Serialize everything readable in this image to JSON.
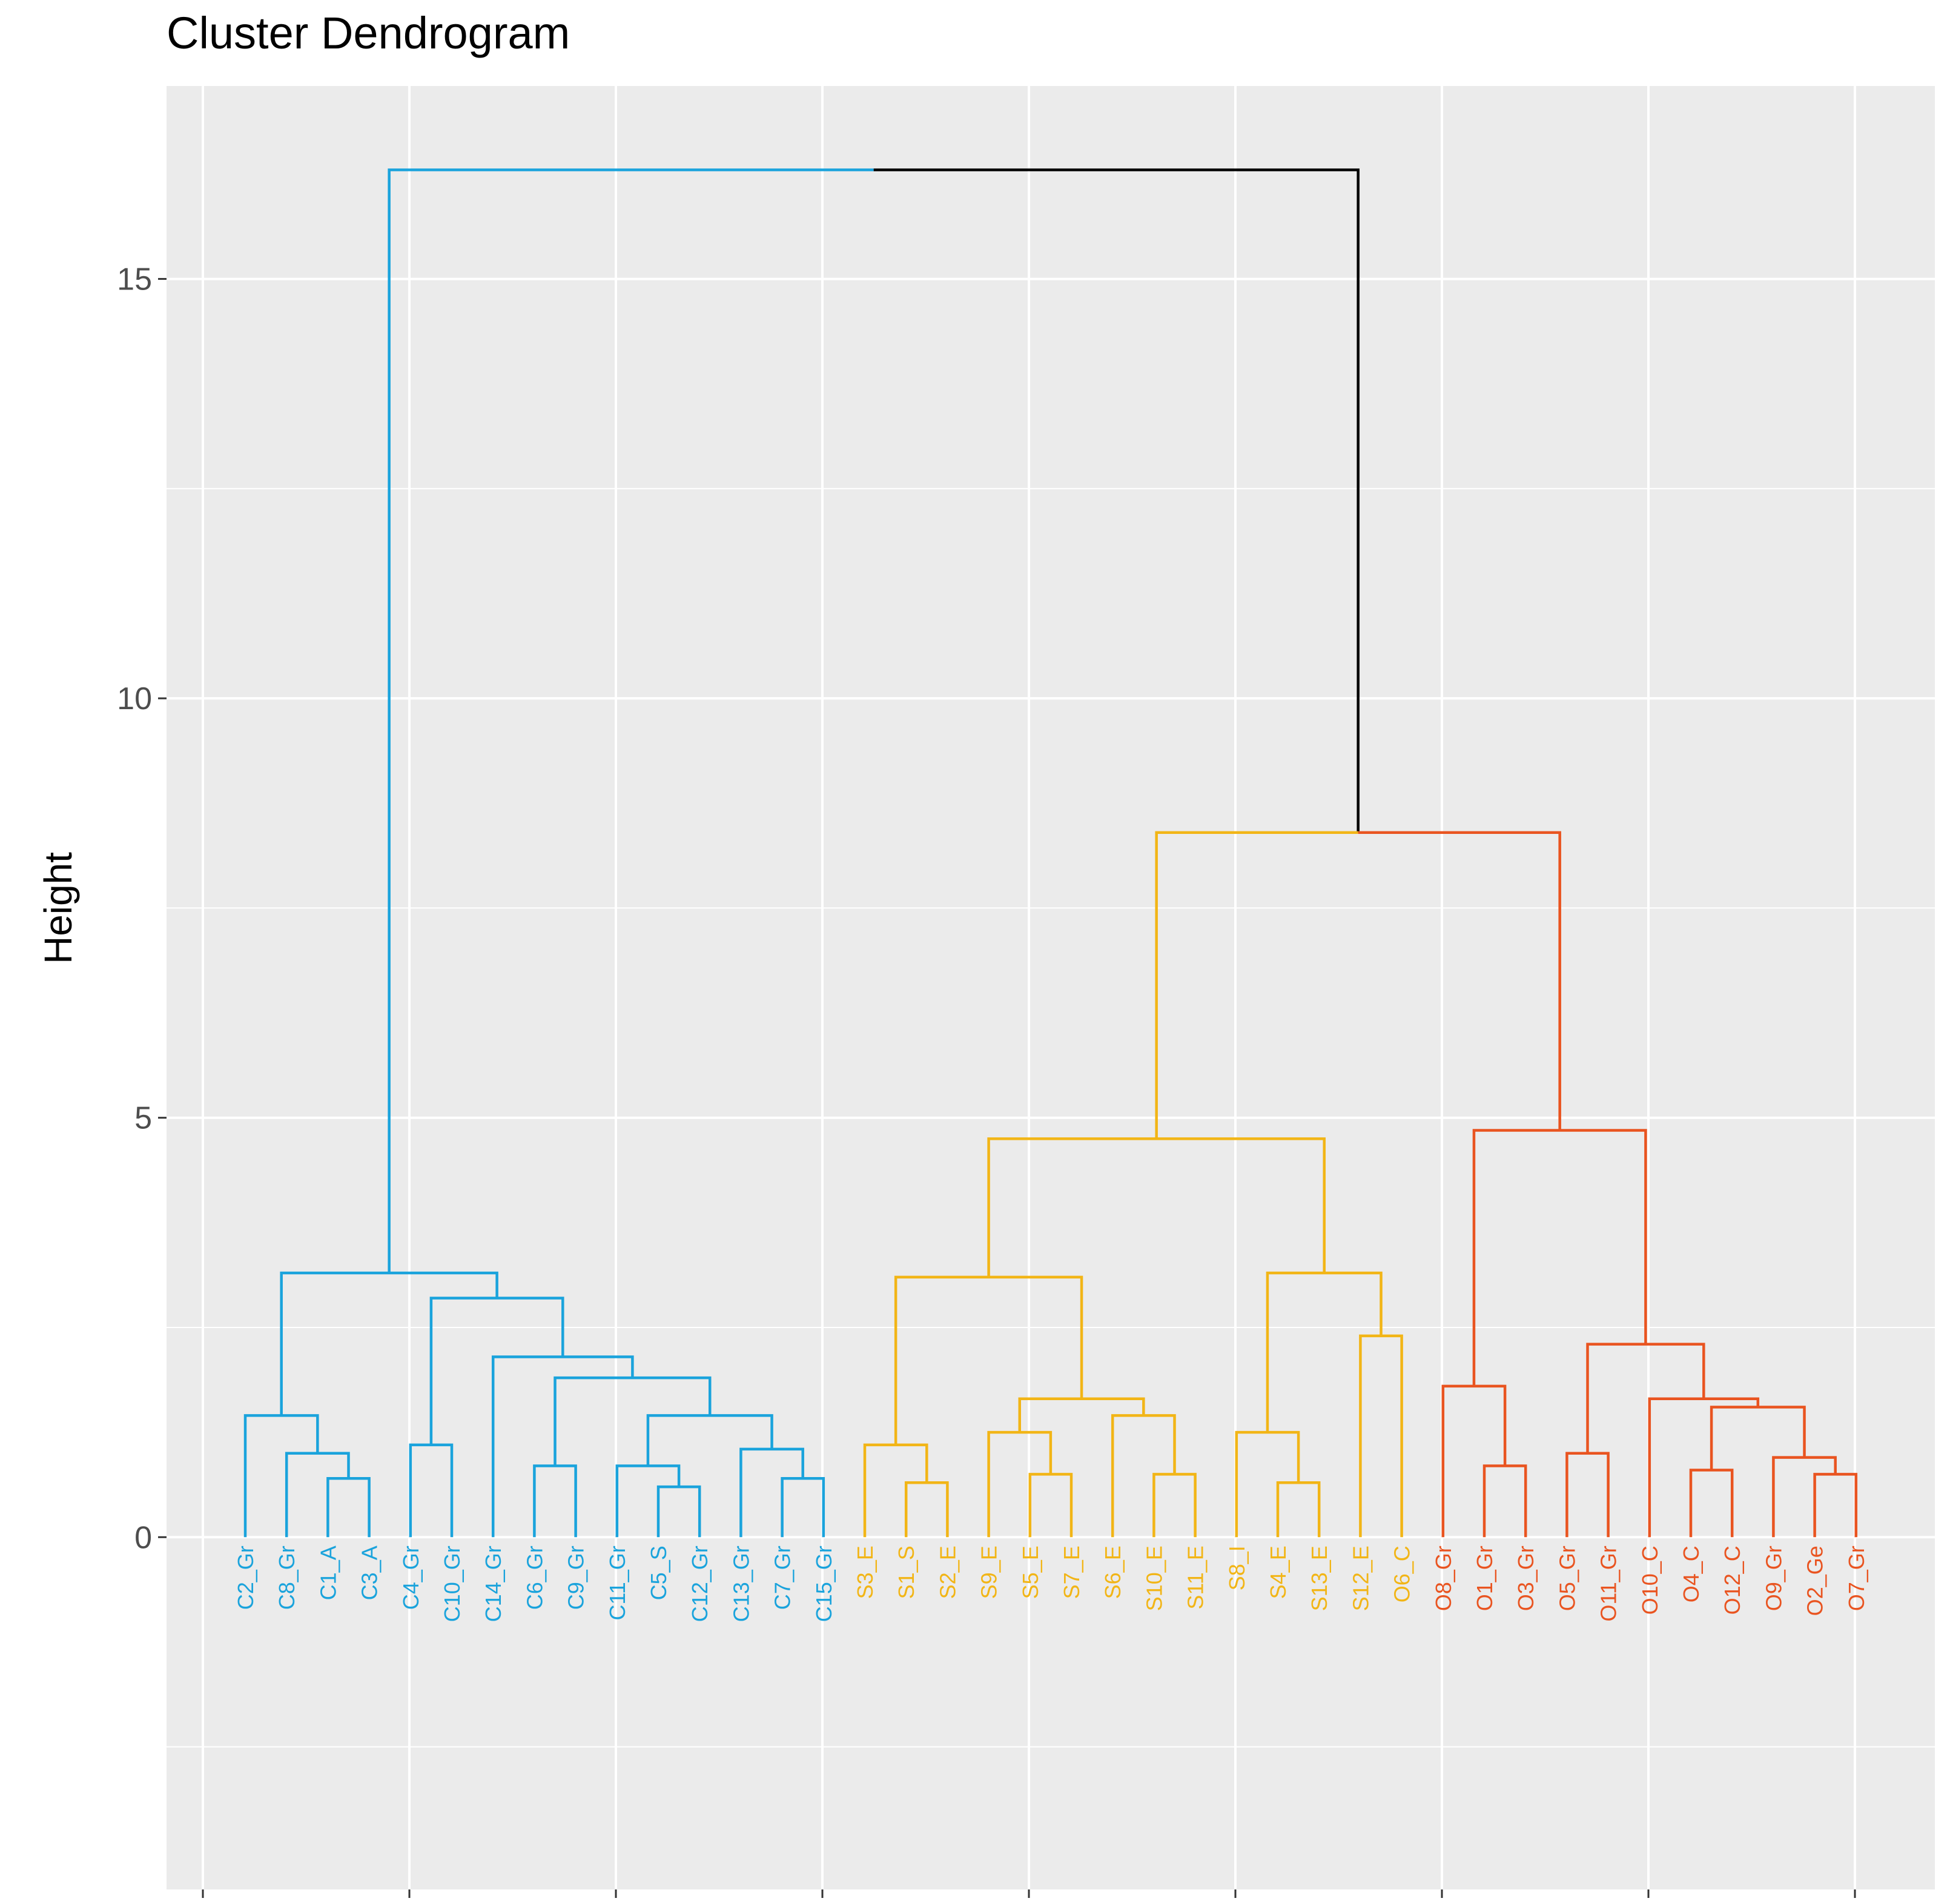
{
  "chart_data": {
    "type": "dendrogram",
    "title": "Cluster Dendrogram",
    "xlabel": "",
    "ylabel": "Height",
    "ylim": [
      -4.2,
      17.3
    ],
    "yticks": [
      0,
      5,
      10,
      15
    ],
    "grid": true,
    "leaves": [
      {
        "label": "C2_Gr",
        "cluster": "C"
      },
      {
        "label": "C8_Gr",
        "cluster": "C"
      },
      {
        "label": "C1_A",
        "cluster": "C"
      },
      {
        "label": "C3_A",
        "cluster": "C"
      },
      {
        "label": "C4_Gr",
        "cluster": "C"
      },
      {
        "label": "C10_Gr",
        "cluster": "C"
      },
      {
        "label": "C14_Gr",
        "cluster": "C"
      },
      {
        "label": "C6_Gr",
        "cluster": "C"
      },
      {
        "label": "C9_Gr",
        "cluster": "C"
      },
      {
        "label": "C11_Gr",
        "cluster": "C"
      },
      {
        "label": "C5_S",
        "cluster": "C"
      },
      {
        "label": "C12_Gr",
        "cluster": "C"
      },
      {
        "label": "C13_Gr",
        "cluster": "C"
      },
      {
        "label": "C7_Gr",
        "cluster": "C"
      },
      {
        "label": "C15_Gr",
        "cluster": "C"
      },
      {
        "label": "S3_E",
        "cluster": "S"
      },
      {
        "label": "S1_S",
        "cluster": "S"
      },
      {
        "label": "S2_E",
        "cluster": "S"
      },
      {
        "label": "S9_E",
        "cluster": "S"
      },
      {
        "label": "S5_E",
        "cluster": "S"
      },
      {
        "label": "S7_E",
        "cluster": "S"
      },
      {
        "label": "S6_E",
        "cluster": "S"
      },
      {
        "label": "S10_E",
        "cluster": "S"
      },
      {
        "label": "S11_E",
        "cluster": "S"
      },
      {
        "label": "S8_I",
        "cluster": "S"
      },
      {
        "label": "S4_E",
        "cluster": "S"
      },
      {
        "label": "S13_E",
        "cluster": "S"
      },
      {
        "label": "S12_E",
        "cluster": "S"
      },
      {
        "label": "O6_C",
        "cluster": "S"
      },
      {
        "label": "O8_Gr",
        "cluster": "O"
      },
      {
        "label": "O1_Gr",
        "cluster": "O"
      },
      {
        "label": "O3_Gr",
        "cluster": "O"
      },
      {
        "label": "O5_Gr",
        "cluster": "O"
      },
      {
        "label": "O11_Gr",
        "cluster": "O"
      },
      {
        "label": "O10_C",
        "cluster": "O"
      },
      {
        "label": "O4_C",
        "cluster": "O"
      },
      {
        "label": "O12_C",
        "cluster": "O"
      },
      {
        "label": "O9_Gr",
        "cluster": "O"
      },
      {
        "label": "O2_Ge",
        "cluster": "O"
      },
      {
        "label": "O7_Gr",
        "cluster": "O"
      }
    ],
    "merges": [
      {
        "left": "C1_A",
        "right": "C3_A",
        "height": 0.7
      },
      {
        "left": "C8_Gr",
        "right": [
          "C1_A",
          "C3_A"
        ],
        "height": 1.0
      },
      {
        "left": "C2_Gr",
        "right": "C8_Gr+",
        "height": 1.45
      },
      {
        "left": "C4_Gr",
        "right": "C10_Gr",
        "height": 1.1
      },
      {
        "left": "C6_Gr",
        "right": "C9_Gr",
        "height": 0.85
      },
      {
        "left": "C5_S",
        "right": "C12_Gr",
        "height": 0.6
      },
      {
        "left": "C11_Gr",
        "right": "C5_S+",
        "height": 0.85
      },
      {
        "left": "C7_Gr",
        "right": "C15_Gr",
        "height": 0.7
      },
      {
        "left": "C13_Gr",
        "right": "C7_Gr+",
        "height": 1.05
      },
      {
        "left": "C11_Gr+",
        "right": "C13_Gr+",
        "height": 1.45
      },
      {
        "left": "C6_Gr+",
        "right": "C11_Gr++",
        "height": 1.9
      },
      {
        "left": "C14_Gr",
        "right": "C6_Gr++",
        "height": 2.15
      },
      {
        "left": "C4_Gr+",
        "right": "C14_Gr+",
        "height": 2.85
      },
      {
        "left": "C2_Gr+",
        "right": "C4_Gr++",
        "height": 3.15
      },
      {
        "left": "S1_S",
        "right": "S2_E",
        "height": 0.65
      },
      {
        "left": "S3_E",
        "right": "S1_S+",
        "height": 1.1
      },
      {
        "left": "S5_E",
        "right": "S7_E",
        "height": 0.75
      },
      {
        "left": "S9_E",
        "right": "S5_E+",
        "height": 1.25
      },
      {
        "left": "S10_E",
        "right": "S11_E",
        "height": 0.75
      },
      {
        "left": "S6_E",
        "right": "S10_E+",
        "height": 1.45
      },
      {
        "left": "S9_E+",
        "right": "S6_E+",
        "height": 1.65
      },
      {
        "left": "S3_E+",
        "right": "S9_E++",
        "height": 3.1
      },
      {
        "left": "S4_E",
        "right": "S13_E",
        "height": 0.65
      },
      {
        "left": "S8_I",
        "right": "S4_E+",
        "height": 1.25
      },
      {
        "left": "S12_E",
        "right": "O6_C",
        "height": 2.4
      },
      {
        "left": "S8_I+",
        "right": "S12_E+",
        "height": 3.15
      },
      {
        "left": "S3_E++",
        "right": "S8_I++",
        "height": 4.75
      },
      {
        "left": "O1_Gr",
        "right": "O3_Gr",
        "height": 0.85
      },
      {
        "left": "O8_Gr",
        "right": "O1_Gr+",
        "height": 1.8
      },
      {
        "left": "O5_Gr",
        "right": "O11_Gr",
        "height": 1.0
      },
      {
        "left": "O4_C",
        "right": "O12_C",
        "height": 0.8
      },
      {
        "left": "O2_Ge",
        "right": "O7_Gr",
        "height": 0.75
      },
      {
        "left": "O9_Gr",
        "right": "O2_Ge+",
        "height": 0.95
      },
      {
        "left": "O4_C+",
        "right": "O9_Gr+",
        "height": 1.55
      },
      {
        "left": "O10_C",
        "right": "O4_C++",
        "height": 1.65
      },
      {
        "left": "O5_Gr+",
        "right": "O10_C+",
        "height": 2.3
      },
      {
        "left": "O8_Gr+",
        "right": "O5_Gr++",
        "height": 4.85
      },
      {
        "left": "S-cluster",
        "right": "O-cluster",
        "height": 8.4
      },
      {
        "left": "C-cluster",
        "right": "S+O",
        "height": 16.3
      }
    ],
    "colors": {
      "C": "#1aa3dc",
      "S": "#f2b516",
      "O": "#e95420",
      "root": "#000000",
      "panel_background": "#ebebeb",
      "grid": "#ffffff",
      "tick_text": "#4d4d4d"
    }
  }
}
